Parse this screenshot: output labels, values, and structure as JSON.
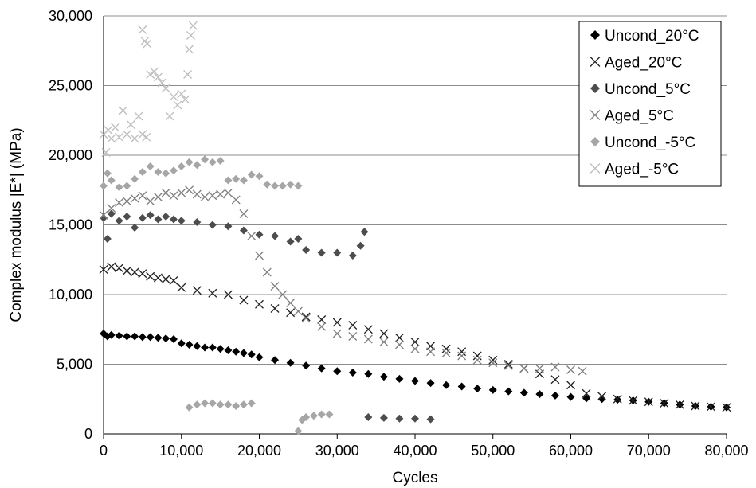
{
  "chart_data": {
    "type": "scatter",
    "title": "",
    "xlabel": "Cycles",
    "ylabel": "Complex modulus |E*| (MPa)",
    "xlim": [
      0,
      80000
    ],
    "ylim": [
      0,
      30000
    ],
    "x_ticks": [
      "0",
      "10,000",
      "20,000",
      "30,000",
      "40,000",
      "50,000",
      "60,000",
      "70,000",
      "80,000"
    ],
    "y_ticks": [
      "0",
      "5,000",
      "10,000",
      "15,000",
      "20,000",
      "25,000",
      "30,000"
    ],
    "grid": "horizontal",
    "legend_position": "top-right",
    "series": [
      {
        "name": "Uncond_20°C",
        "marker": "diamond",
        "color": "#000000",
        "points": [
          [
            0,
            7200
          ],
          [
            500,
            7000
          ],
          [
            1000,
            7100
          ],
          [
            2000,
            7050
          ],
          [
            3000,
            7000
          ],
          [
            4000,
            7000
          ],
          [
            5000,
            6950
          ],
          [
            6000,
            6950
          ],
          [
            7000,
            6900
          ],
          [
            8000,
            6850
          ],
          [
            9000,
            6800
          ],
          [
            10000,
            6500
          ],
          [
            11000,
            6400
          ],
          [
            12000,
            6300
          ],
          [
            13000,
            6200
          ],
          [
            14000,
            6200
          ],
          [
            15000,
            6100
          ],
          [
            16000,
            6000
          ],
          [
            17000,
            5900
          ],
          [
            18000,
            5800
          ],
          [
            19000,
            5700
          ],
          [
            20000,
            5500
          ],
          [
            22000,
            5300
          ],
          [
            24000,
            5100
          ],
          [
            26000,
            4900
          ],
          [
            28000,
            4700
          ],
          [
            30000,
            4500
          ],
          [
            32000,
            4400
          ],
          [
            34000,
            4300
          ],
          [
            36000,
            4100
          ],
          [
            38000,
            3950
          ],
          [
            40000,
            3800
          ],
          [
            42000,
            3650
          ],
          [
            44000,
            3500
          ],
          [
            46000,
            3400
          ],
          [
            48000,
            3250
          ],
          [
            50000,
            3150
          ],
          [
            52000,
            3050
          ],
          [
            54000,
            2950
          ],
          [
            56000,
            2850
          ],
          [
            58000,
            2750
          ],
          [
            60000,
            2650
          ],
          [
            62000,
            2550
          ],
          [
            64000,
            2500
          ],
          [
            66000,
            2450
          ],
          [
            68000,
            2400
          ],
          [
            70000,
            2300
          ],
          [
            72000,
            2200
          ],
          [
            74000,
            2100
          ],
          [
            76000,
            2000
          ],
          [
            78000,
            1950
          ],
          [
            80000,
            1900
          ]
        ]
      },
      {
        "name": "Aged_20°C",
        "marker": "x",
        "color": "#222222",
        "points": [
          [
            0,
            11800
          ],
          [
            1000,
            12000
          ],
          [
            2000,
            11900
          ],
          [
            3000,
            11700
          ],
          [
            4000,
            11600
          ],
          [
            5000,
            11500
          ],
          [
            6000,
            11300
          ],
          [
            7000,
            11200
          ],
          [
            8000,
            11100
          ],
          [
            9000,
            11000
          ],
          [
            10000,
            10500
          ],
          [
            12000,
            10300
          ],
          [
            14000,
            10100
          ],
          [
            16000,
            10000
          ],
          [
            18000,
            9600
          ],
          [
            20000,
            9300
          ],
          [
            22000,
            9000
          ],
          [
            24000,
            8700
          ],
          [
            26000,
            8400
          ],
          [
            28000,
            8200
          ],
          [
            30000,
            8000
          ],
          [
            32000,
            7800
          ],
          [
            34000,
            7500
          ],
          [
            36000,
            7200
          ],
          [
            38000,
            6900
          ],
          [
            40000,
            6600
          ],
          [
            42000,
            6300
          ],
          [
            44000,
            6100
          ],
          [
            46000,
            5900
          ],
          [
            48000,
            5600
          ],
          [
            50000,
            5300
          ],
          [
            52000,
            5000
          ],
          [
            54000,
            4700
          ],
          [
            56000,
            4300
          ],
          [
            58000,
            3900
          ],
          [
            60000,
            3500
          ],
          [
            62000,
            2900
          ],
          [
            64000,
            2700
          ],
          [
            66000,
            2500
          ],
          [
            68000,
            2400
          ],
          [
            70000,
            2300
          ],
          [
            72000,
            2200
          ],
          [
            74000,
            2100
          ],
          [
            76000,
            2000
          ],
          [
            78000,
            1950
          ],
          [
            80000,
            1900
          ]
        ]
      },
      {
        "name": "Uncond_5°C",
        "marker": "diamond",
        "color": "#4d4d4d",
        "points": [
          [
            0,
            15500
          ],
          [
            500,
            14000
          ],
          [
            1000,
            15800
          ],
          [
            2000,
            15300
          ],
          [
            3000,
            15600
          ],
          [
            4000,
            14800
          ],
          [
            5000,
            15500
          ],
          [
            6000,
            15700
          ],
          [
            7000,
            15400
          ],
          [
            8000,
            15600
          ],
          [
            9000,
            15400
          ],
          [
            10000,
            15300
          ],
          [
            12000,
            15200
          ],
          [
            14000,
            15000
          ],
          [
            16000,
            14900
          ],
          [
            18000,
            14600
          ],
          [
            20000,
            14300
          ],
          [
            22000,
            14200
          ],
          [
            24000,
            13800
          ],
          [
            25000,
            14000
          ],
          [
            26000,
            13200
          ],
          [
            28000,
            13000
          ],
          [
            30000,
            13000
          ],
          [
            32000,
            12800
          ],
          [
            33000,
            13500
          ],
          [
            33500,
            14500
          ],
          [
            34000,
            1200
          ],
          [
            36000,
            1150
          ],
          [
            38000,
            1100
          ],
          [
            40000,
            1100
          ],
          [
            42000,
            1050
          ]
        ]
      },
      {
        "name": "Aged_5°C",
        "marker": "x",
        "color": "#7f7f7f",
        "points": [
          [
            0,
            15700
          ],
          [
            1000,
            16200
          ],
          [
            2000,
            16600
          ],
          [
            3000,
            16700
          ],
          [
            4000,
            16900
          ],
          [
            5000,
            17100
          ],
          [
            6000,
            16700
          ],
          [
            7000,
            17000
          ],
          [
            8000,
            17300
          ],
          [
            9000,
            17100
          ],
          [
            10000,
            17300
          ],
          [
            11000,
            17500
          ],
          [
            12000,
            17200
          ],
          [
            13000,
            17000
          ],
          [
            14000,
            17100
          ],
          [
            15000,
            17200
          ],
          [
            16000,
            17300
          ],
          [
            17000,
            16800
          ],
          [
            18000,
            15800
          ],
          [
            19000,
            14200
          ],
          [
            20000,
            12800
          ],
          [
            21000,
            11600
          ],
          [
            22000,
            10600
          ],
          [
            23000,
            10000
          ],
          [
            24000,
            9400
          ],
          [
            25000,
            8800
          ],
          [
            26000,
            8300
          ],
          [
            28000,
            7700
          ],
          [
            30000,
            7200
          ],
          [
            32000,
            7000
          ],
          [
            34000,
            6800
          ],
          [
            36000,
            6600
          ],
          [
            38000,
            6400
          ],
          [
            40000,
            6100
          ],
          [
            42000,
            5900
          ],
          [
            44000,
            5800
          ],
          [
            46000,
            5600
          ],
          [
            48000,
            5300
          ],
          [
            50000,
            5100
          ],
          [
            52000,
            4900
          ],
          [
            54000,
            4700
          ],
          [
            56000,
            4700
          ],
          [
            58000,
            4800
          ],
          [
            60000,
            4600
          ],
          [
            61500,
            4500
          ]
        ]
      },
      {
        "name": "Uncond_-5°C",
        "marker": "diamond",
        "color": "#a6a6a6",
        "points": [
          [
            0,
            17800
          ],
          [
            500,
            18700
          ],
          [
            1000,
            18200
          ],
          [
            2000,
            17700
          ],
          [
            3000,
            17800
          ],
          [
            4000,
            18300
          ],
          [
            5000,
            18800
          ],
          [
            6000,
            19200
          ],
          [
            7000,
            18800
          ],
          [
            8000,
            18700
          ],
          [
            9000,
            18900
          ],
          [
            10000,
            19200
          ],
          [
            11000,
            19500
          ],
          [
            12000,
            19300
          ],
          [
            13000,
            19700
          ],
          [
            14000,
            19500
          ],
          [
            15000,
            19600
          ],
          [
            16000,
            18200
          ],
          [
            17000,
            18300
          ],
          [
            18000,
            18200
          ],
          [
            19000,
            18600
          ],
          [
            20000,
            18500
          ],
          [
            21000,
            17900
          ],
          [
            22000,
            17800
          ],
          [
            23000,
            17800
          ],
          [
            24000,
            17900
          ],
          [
            25000,
            17800
          ],
          [
            11000,
            1900
          ],
          [
            12000,
            2100
          ],
          [
            13000,
            2200
          ],
          [
            14000,
            2200
          ],
          [
            15000,
            2100
          ],
          [
            16000,
            2100
          ],
          [
            17000,
            2000
          ],
          [
            18000,
            2100
          ],
          [
            19000,
            2200
          ],
          [
            25000,
            200
          ],
          [
            25500,
            1000
          ],
          [
            26000,
            1200
          ],
          [
            27000,
            1300
          ],
          [
            28000,
            1400
          ],
          [
            29000,
            1400
          ]
        ]
      },
      {
        "name": "Aged_-5°C",
        "marker": "x",
        "color": "#bfbfbf",
        "points": [
          [
            0,
            21500
          ],
          [
            300,
            20200
          ],
          [
            600,
            21800
          ],
          [
            1000,
            21200
          ],
          [
            1500,
            22000
          ],
          [
            2000,
            21300
          ],
          [
            2500,
            23200
          ],
          [
            3000,
            21500
          ],
          [
            3500,
            22200
          ],
          [
            4000,
            21200
          ],
          [
            4500,
            22800
          ],
          [
            5000,
            21500
          ],
          [
            5500,
            21300
          ],
          [
            5000,
            29000
          ],
          [
            5300,
            28200
          ],
          [
            5600,
            28000
          ],
          [
            6000,
            25800
          ],
          [
            6500,
            26000
          ],
          [
            7000,
            25600
          ],
          [
            7500,
            25200
          ],
          [
            8000,
            24800
          ],
          [
            8500,
            22800
          ],
          [
            9000,
            24200
          ],
          [
            9500,
            23600
          ],
          [
            10000,
            24400
          ],
          [
            10500,
            24000
          ],
          [
            10800,
            25800
          ],
          [
            11000,
            27600
          ],
          [
            11200,
            28600
          ],
          [
            11500,
            29300
          ]
        ]
      }
    ]
  }
}
